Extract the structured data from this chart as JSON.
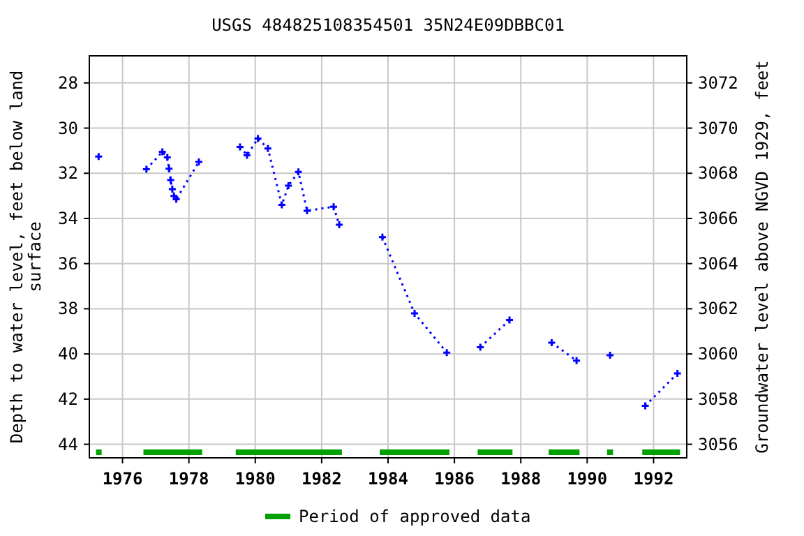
{
  "chart_data": {
    "type": "line",
    "title": "USGS 484825108354501 35N24E09DBBC01",
    "ylabel": "Depth to water level, feet below land surface",
    "y2label": "Groundwater level above NGVD 1929, feet",
    "series": [
      {
        "color": "#0000ff",
        "x": [
          1975.28,
          1976.0,
          1976.72,
          1977.2,
          1977.35,
          1977.4,
          1977.45,
          1977.5,
          1977.55,
          1977.62,
          1978.3,
          1978.9,
          1979.54,
          1979.75,
          1980.08,
          1980.38,
          1980.8,
          1981.0,
          1981.3,
          1981.56,
          1982.36,
          1982.53,
          1983.2,
          1983.83,
          1984.8,
          1985.77,
          1986.3,
          1986.78,
          1987.66,
          1988.3,
          1988.93,
          1989.68,
          1990.2,
          1990.69,
          1991.2,
          1991.75,
          1992.72
        ],
        "values": [
          31.26,
          null,
          31.82,
          31.05,
          31.3,
          31.8,
          32.3,
          32.7,
          33.0,
          33.15,
          31.5,
          null,
          30.83,
          31.2,
          30.46,
          30.9,
          33.4,
          32.55,
          31.94,
          33.66,
          33.48,
          34.28,
          null,
          34.83,
          38.2,
          39.94,
          null,
          39.7,
          38.5,
          null,
          39.5,
          40.3,
          null,
          40.06,
          null,
          42.3,
          40.86
        ]
      },
      {
        "name": "Period of approved data",
        "color": "#00a000",
        "marker": "none",
        "line_style": "solid",
        "x": [
          1975.2,
          1975.37,
          1976.0,
          1976.63,
          1978.4,
          1979.0,
          1979.41,
          1982.61,
          1983.2,
          1983.75,
          1985.85,
          1986.3,
          1986.7,
          1987.75,
          1988.3,
          1988.84,
          1989.77,
          1990.2,
          1990.6,
          1990.78,
          1991.2,
          1991.66,
          1992.8
        ],
        "values": [
          44.35,
          44.35,
          null,
          44.35,
          44.35,
          null,
          44.35,
          44.35,
          null,
          44.35,
          44.35,
          null,
          44.35,
          44.35,
          null,
          44.35,
          44.35,
          null,
          44.35,
          44.35,
          null,
          44.35,
          44.35
        ]
      }
    ],
    "xlim": [
      1975,
      1993
    ],
    "xticks": [
      1976,
      1978,
      1980,
      1982,
      1984,
      1986,
      1988,
      1990,
      1992
    ],
    "ylim": [
      44.6,
      26.8
    ],
    "yticks": [
      28,
      30,
      32,
      34,
      36,
      38,
      40,
      42,
      44
    ],
    "y2lim": [
      3055.4,
      3073.2
    ],
    "y2ticks": [
      3056,
      3058,
      3060,
      3062,
      3064,
      3066,
      3068,
      3070,
      3072
    ],
    "grid": true,
    "legend": "bottom",
    "marker": "cross",
    "line_style": "dotted"
  }
}
